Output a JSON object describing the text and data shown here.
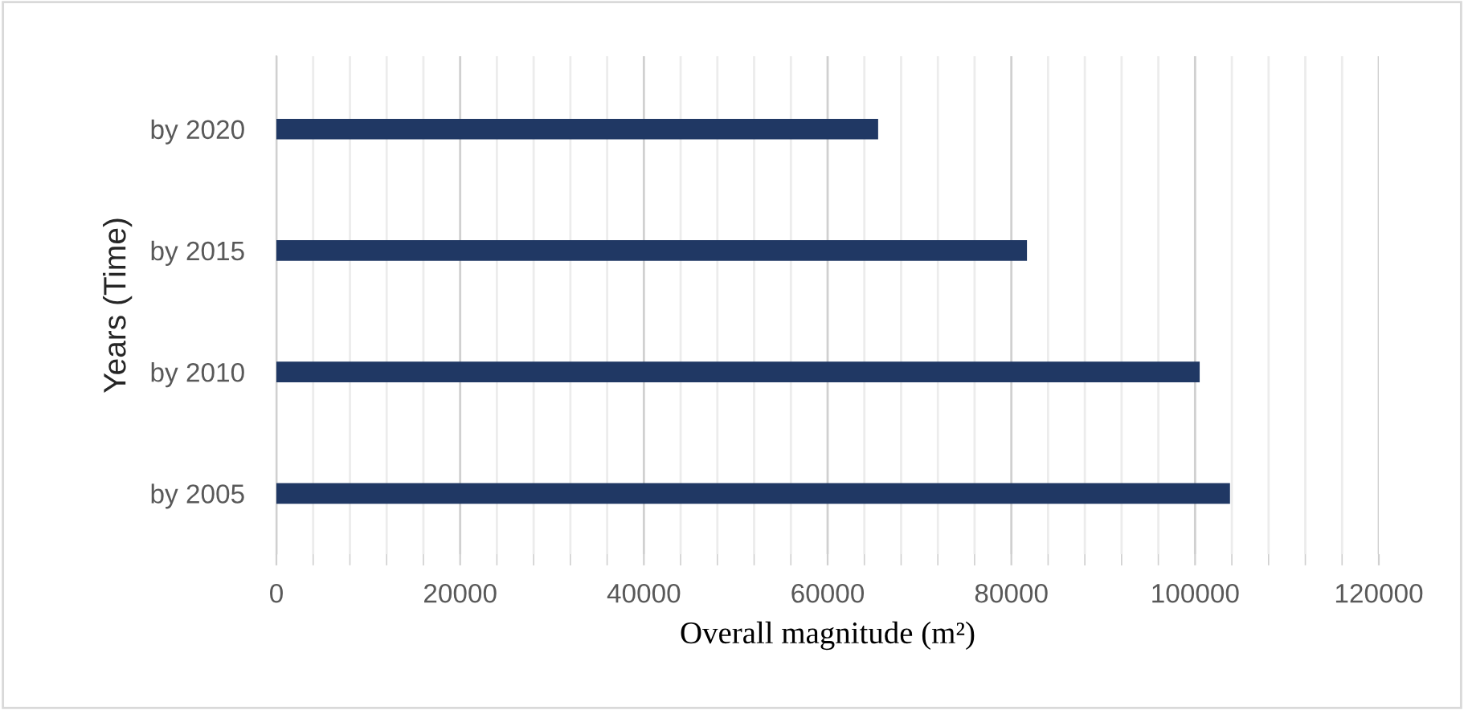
{
  "chart_data": {
    "type": "bar",
    "orientation": "horizontal",
    "xlabel": "Overall magnitude (m²)",
    "ylabel": "Years (Time)",
    "categories": [
      "by 2020",
      "by 2015",
      "by 2010",
      "by 2005"
    ],
    "values": [
      65500,
      81700,
      100500,
      103800
    ],
    "color": "#203864",
    "xlim": [
      0,
      120000
    ],
    "xticks": [
      0,
      20000,
      40000,
      60000,
      80000,
      100000,
      120000
    ],
    "grid": "x"
  }
}
